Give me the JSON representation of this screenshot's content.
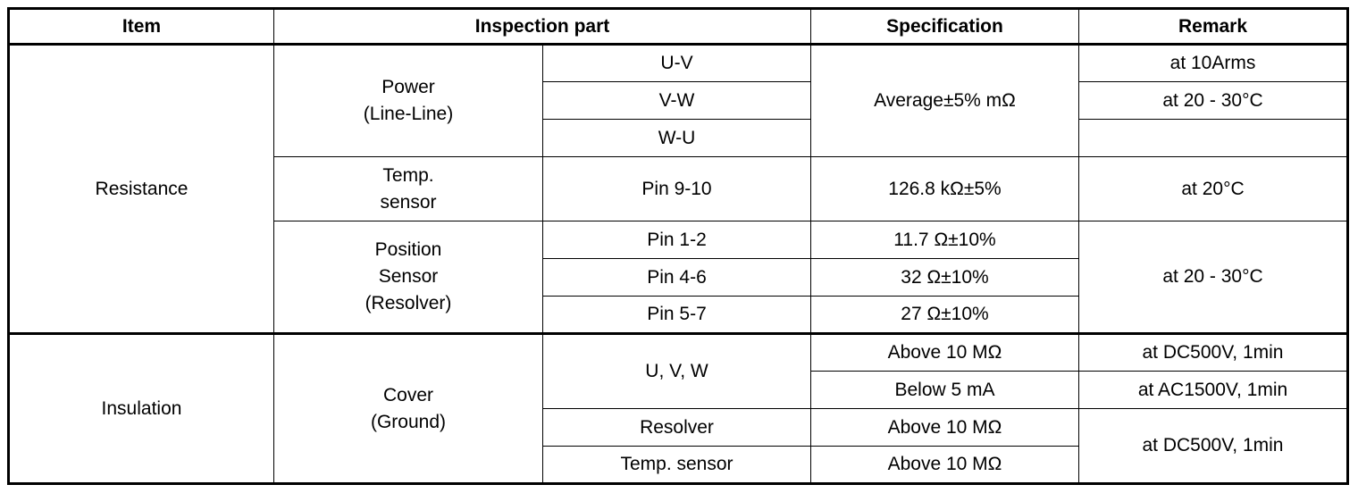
{
  "table": {
    "header": [
      "Item",
      "Inspection part",
      "Specification",
      "Remark"
    ],
    "rows": [
      [
        "Resistance",
        "Power\n(Line-Line)",
        "U-V",
        "Average±5% mΩ",
        "at 10Arms"
      ],
      [
        "V-W",
        "at 20 - 30°C"
      ],
      [
        "W-U"
      ],
      [
        "Temp.\nsensor",
        "Pin 9-10",
        "126.8 kΩ±5%",
        "at 20°C"
      ],
      [
        "Position\nSensor\n(Resolver)",
        "Pin 1-2",
        "11.7 Ω±10%",
        "at 20 - 30°C"
      ],
      [
        "Pin 4-6",
        "32 Ω±10%"
      ],
      [
        "Pin 5-7",
        "27 Ω±10%"
      ],
      [
        "Insulation",
        "Cover\n(Ground)",
        "U, V, W",
        "Above 10 MΩ",
        "at DC500V, 1min"
      ],
      [
        "Below 5 mA",
        "at AC1500V, 1min"
      ],
      [
        "Resolver",
        "Above 10 MΩ",
        "at DC500V, 1min"
      ],
      [
        "Temp. sensor",
        "Above 10 MΩ"
      ]
    ]
  }
}
